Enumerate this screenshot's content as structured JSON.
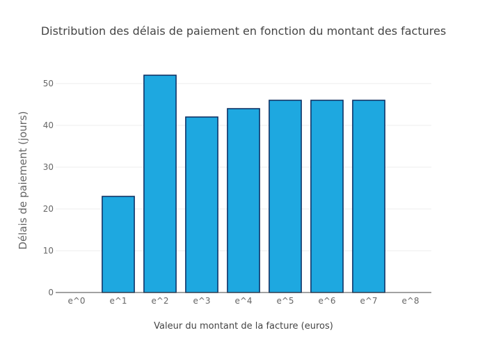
{
  "chart_data": {
    "type": "bar",
    "title": "Distribution des délais de paiement en fonction du montant des factures",
    "xlabel": "Valeur du montant de la facture (euros)",
    "ylabel": "Délais de paiement (jours)",
    "categories": [
      "e^0",
      "e^1",
      "e^2",
      "e^3",
      "e^4",
      "e^5",
      "e^6",
      "e^7",
      "e^8"
    ],
    "values": [
      0,
      23,
      52,
      42,
      44,
      46,
      46,
      46,
      0
    ],
    "ylim": [
      0,
      55
    ],
    "yticks": [
      0,
      10,
      20,
      30,
      40,
      50
    ],
    "grid": true,
    "legend": "none",
    "colors": {
      "bar_fill": "#1ea8e0",
      "bar_stroke": "#0a2a5e",
      "grid": "#eeeeee",
      "axis": "#444444",
      "text": "#444444",
      "tick_text": "#666666"
    }
  }
}
